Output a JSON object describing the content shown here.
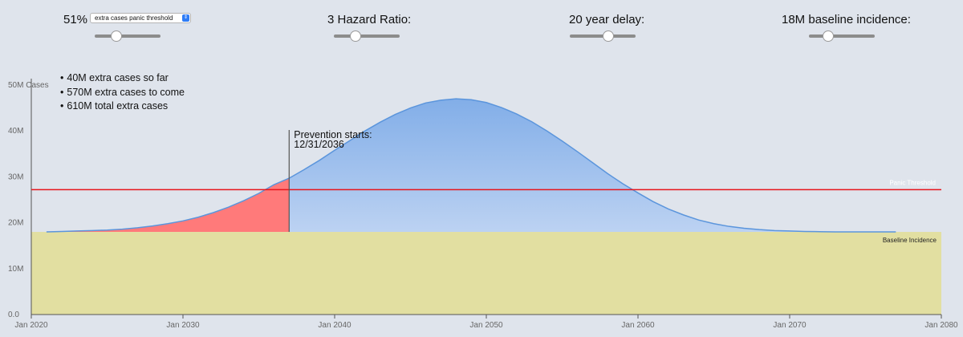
{
  "controls": {
    "threshold_value": "51%",
    "threshold_select": "extra cases panic threshold",
    "hazard_label": "3 Hazard Ratio:",
    "delay_label": "20 year delay:",
    "baseline_label": "18M baseline incidence:",
    "threshold_slider_level": 0.3,
    "hazard_slider_level": 0.3,
    "delay_slider_level": 0.6,
    "baseline_slider_level": 0.25
  },
  "stats": {
    "extra_so_far": "40M extra cases so far",
    "extra_to_come": "570M extra cases to come",
    "total_extra": "610M total extra cases"
  },
  "chart_data": {
    "type": "area",
    "x_tick_labels": [
      "Jan 2020",
      "Jan 2030",
      "Jan 2040",
      "Jan 2050",
      "Jan 2060",
      "Jan 2070",
      "Jan 2080"
    ],
    "x_range": [
      2020,
      2080
    ],
    "y_tick_labels": [
      "0.0",
      "10M",
      "20M",
      "30M",
      "40M",
      "50M Cases"
    ],
    "y_range": [
      0,
      50
    ],
    "y_unit": "million cases",
    "baseline": 18,
    "panic_threshold": 27.2,
    "prevention_start": 2037,
    "annotation_line1": "Prevention starts:",
    "annotation_line2": "12/31/2036",
    "panic_label": "Panic Threshold",
    "baseline_label": "Baseline Incidence",
    "curve": {
      "x": [
        2021,
        2022,
        2023,
        2024,
        2025,
        2026,
        2027,
        2028,
        2029,
        2030,
        2031,
        2032,
        2033,
        2034,
        2035,
        2036,
        2037,
        2038,
        2039,
        2040,
        2041,
        2042,
        2043,
        2044,
        2045,
        2046,
        2047,
        2048,
        2049,
        2050,
        2051,
        2052,
        2053,
        2054,
        2055,
        2056,
        2057,
        2058,
        2059,
        2060,
        2061,
        2062,
        2063,
        2064,
        2065,
        2066,
        2067,
        2068,
        2069,
        2070,
        2071,
        2072,
        2073,
        2074,
        2075,
        2076,
        2077
      ],
      "y": [
        18.0,
        18.1,
        18.2,
        18.3,
        18.4,
        18.6,
        18.9,
        19.3,
        19.8,
        20.4,
        21.2,
        22.2,
        23.4,
        24.8,
        26.4,
        28.3,
        29.7,
        31.6,
        33.6,
        35.8,
        37.9,
        40.0,
        41.9,
        43.6,
        45.0,
        46.1,
        46.7,
        47.0,
        46.8,
        46.2,
        45.1,
        43.7,
        42.0,
        40.0,
        37.8,
        35.5,
        33.1,
        30.7,
        28.5,
        26.5,
        24.6,
        23.0,
        21.7,
        20.6,
        19.8,
        19.2,
        18.8,
        18.5,
        18.3,
        18.2,
        18.1,
        18.05,
        18.0,
        18.0,
        18.0,
        18.0,
        18.0
      ]
    },
    "colors": {
      "baseline_fill": "#e2dfa1",
      "extra_fill_top": "#82aee8",
      "extra_fill_bottom": "#bcd2f2",
      "curve_stroke": "#5b95dc",
      "past_extra_fill": "#ff7a7a",
      "panic_line": "#e8141b",
      "axis": "#555555"
    }
  }
}
